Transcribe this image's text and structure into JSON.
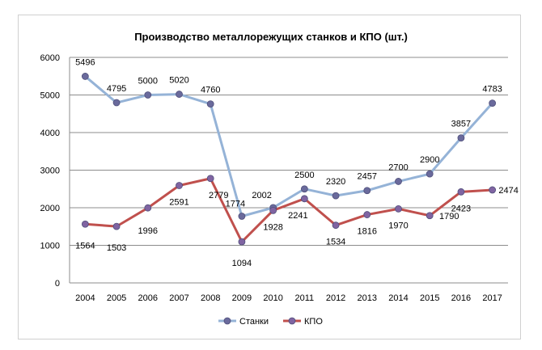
{
  "chart_data": {
    "type": "line",
    "title": "Производство металлорежущих  станков и КПО (шт.)",
    "xlabel": "",
    "ylabel": "",
    "x": [
      "2004",
      "2005",
      "2006",
      "2007",
      "2008",
      "2009",
      "2010",
      "2011",
      "2012",
      "2013",
      "2014",
      "2015",
      "2016",
      "2017"
    ],
    "ylim": [
      0,
      6000
    ],
    "yticks": [
      0,
      1000,
      2000,
      3000,
      4000,
      5000,
      6000
    ],
    "grid": true,
    "legend_position": "bottom",
    "series": [
      {
        "name": "Станки",
        "color": "#95b3d7",
        "marker_color": "#6a6a9c",
        "values": [
          5496,
          4795,
          5000,
          5020,
          4760,
          1774,
          2002,
          2500,
          2320,
          2457,
          2700,
          2900,
          3857,
          4783
        ],
        "labels": [
          "5496",
          "4795",
          "5000",
          "5020",
          "4760",
          "1774",
          "2002",
          "2500",
          "2320",
          "2457",
          "2700",
          "2900",
          "3857",
          "4783"
        ]
      },
      {
        "name": "КПО",
        "color": "#c0504d",
        "marker_color": "#8064a2",
        "values": [
          1564,
          1503,
          1996,
          2591,
          2779,
          1094,
          1928,
          2241,
          1534,
          1816,
          1970,
          1790,
          2423,
          2474
        ],
        "labels": [
          "1564",
          "1503",
          "1996",
          "2591",
          "2779",
          "1094",
          "1928",
          "2241",
          "1534",
          "1816",
          "1970",
          "1790",
          "2423",
          "2474"
        ]
      }
    ]
  }
}
